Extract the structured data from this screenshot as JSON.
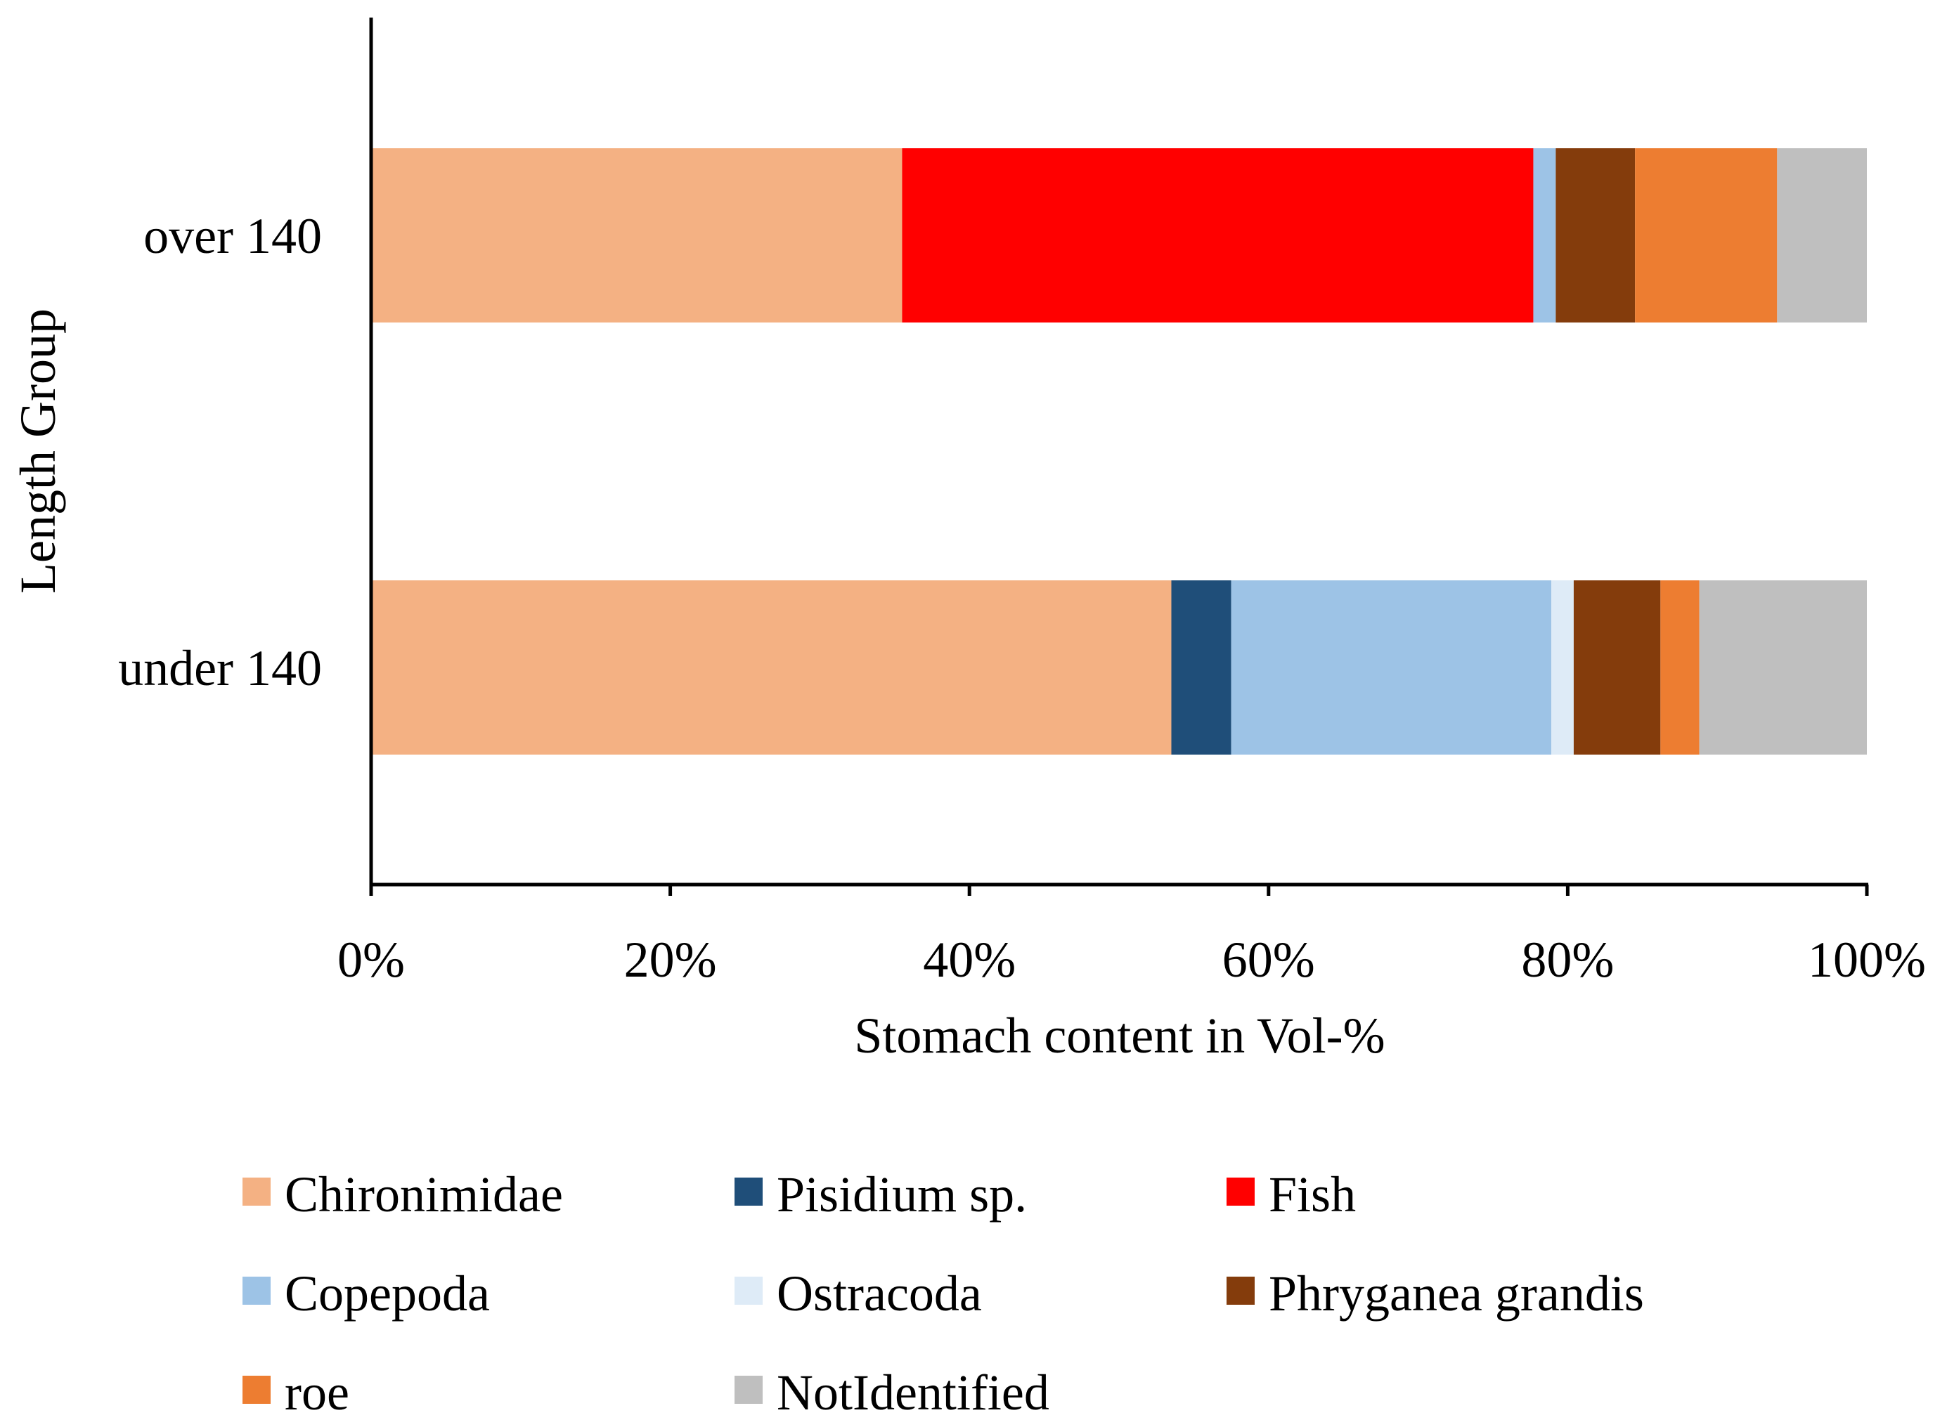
{
  "chart_data": {
    "type": "bar",
    "orientation": "horizontal",
    "stacked": "percent",
    "title": "",
    "xlabel": "Stomach content in Vol-%",
    "ylabel": "Length Group",
    "xlim": [
      0,
      100
    ],
    "x_ticks": [
      "0%",
      "20%",
      "40%",
      "60%",
      "80%",
      "100%"
    ],
    "x_tick_values": [
      0,
      20,
      40,
      60,
      80,
      100
    ],
    "categories": [
      "over 140",
      "under 140"
    ],
    "series": [
      {
        "name": "Chironimidae",
        "color": "#F4B183",
        "values": [
          35.5,
          53.5
        ]
      },
      {
        "name": "Pisidium sp.",
        "color": "#1F4E79",
        "values": [
          0,
          4.0
        ]
      },
      {
        "name": "Fish",
        "color": "#FF0000",
        "values": [
          42.2,
          0
        ]
      },
      {
        "name": "Copepoda",
        "color": "#9DC3E6",
        "values": [
          1.5,
          21.4
        ]
      },
      {
        "name": "Ostracoda",
        "color": "#DEEBF7",
        "values": [
          0,
          1.5
        ]
      },
      {
        "name": "Phryganea grandis",
        "color": "#843C0C",
        "values": [
          5.3,
          5.8
        ]
      },
      {
        "name": "roe",
        "color": "#ED7D31",
        "values": [
          9.5,
          2.6
        ]
      },
      {
        "name": "NotIdentified",
        "color": "#BFBFBF",
        "values": [
          6.0,
          11.2
        ]
      }
    ],
    "legend_position": "bottom",
    "grid": false
  }
}
